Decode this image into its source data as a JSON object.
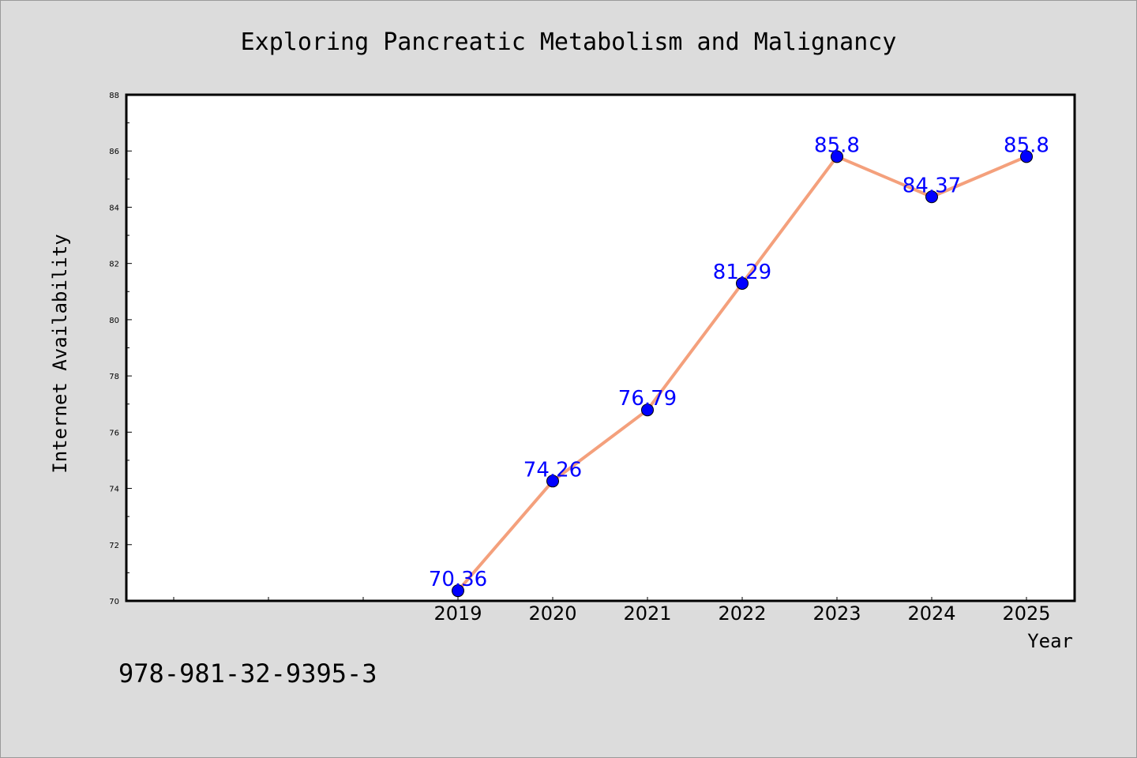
{
  "chart_data": {
    "type": "line",
    "title": "Exploring Pancreatic Metabolism and Malignancy",
    "xlabel": "Year",
    "ylabel": "Internet Availability",
    "categories": [
      "2019",
      "2020",
      "2021",
      "2022",
      "2023",
      "2024",
      "2025"
    ],
    "values": [
      70.36,
      74.26,
      76.79,
      81.29,
      85.8,
      84.37,
      85.8
    ],
    "data_labels": [
      "70.36",
      "74.26",
      "76.79",
      "81.29",
      "85.8",
      "84.37",
      "85.8"
    ],
    "ylim": [
      70,
      88
    ],
    "yticks": [
      70,
      72,
      74,
      76,
      78,
      80,
      82,
      84,
      86,
      88
    ],
    "ytick_labels": [
      "70",
      "72",
      "74",
      "76",
      "78",
      "80",
      "82",
      "84",
      "86",
      "88"
    ],
    "grid": false,
    "colors": {
      "line": "#f4a07c",
      "marker": "#0000ff",
      "data_label": "#0000ff",
      "background": "#dcdcdc",
      "plot_area": "#ffffff"
    }
  },
  "footer_note": "978-981-32-9395-3"
}
